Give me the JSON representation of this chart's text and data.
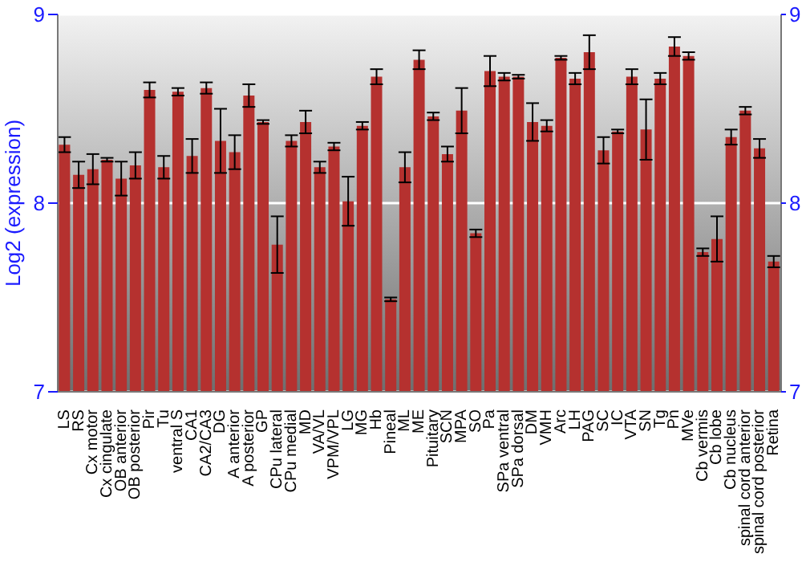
{
  "chart_data": {
    "type": "bar",
    "ylabel": "Log2 (expression)",
    "categories": [
      "LS",
      "RS",
      "Cx motor",
      "Cx cingulate",
      "OB anterior",
      "OB posterior",
      "Pir",
      "Tu",
      "ventral S",
      "CA1",
      "CA2/CA3",
      "DG",
      "A anterior",
      "A posterior",
      "GP",
      "CPu lateral",
      "CPu medial",
      "MD",
      "VA/VL",
      "VPM/VPL",
      "LG",
      "MG",
      "Hb",
      "Pineal",
      "ML",
      "ME",
      "Pituitary",
      "SCN",
      "MPA",
      "SO",
      "Pa",
      "SPa ventral",
      "SPa dorsal",
      "DM",
      "VMH",
      "Arc",
      "LH",
      "PAG",
      "SC",
      "IC",
      "VTA",
      "SN",
      "Tg",
      "Pn",
      "MVe",
      "Cb vermis",
      "Cb lobe",
      "Cb nucleus",
      "spinal cord anterior",
      "spinal cord posterior",
      "Retina"
    ],
    "series": [
      {
        "color": "#b5312f",
        "values": [
          8.31,
          8.15,
          8.18,
          8.23,
          8.13,
          8.2,
          8.6,
          8.19,
          8.59,
          8.25,
          8.61,
          8.33,
          8.27,
          8.57,
          8.43,
          7.78,
          8.33,
          8.43,
          8.19,
          8.3,
          8.01,
          8.41,
          8.67,
          7.49,
          8.19,
          8.76,
          8.46,
          8.26,
          8.49,
          7.84,
          8.7,
          8.67,
          8.67,
          8.43,
          8.41,
          8.77,
          8.66,
          8.8,
          8.28,
          8.38,
          8.67,
          8.39,
          8.66,
          8.83,
          8.78,
          7.74,
          7.81,
          8.35,
          8.49,
          8.29,
          7.69
        ],
        "errors": [
          0.04,
          0.07,
          0.08,
          0.01,
          0.09,
          0.07,
          0.04,
          0.06,
          0.02,
          0.09,
          0.03,
          0.17,
          0.09,
          0.06,
          0.01,
          0.15,
          0.03,
          0.06,
          0.03,
          0.02,
          0.13,
          0.02,
          0.04,
          0.01,
          0.08,
          0.05,
          0.02,
          0.04,
          0.12,
          0.02,
          0.08,
          0.02,
          0.01,
          0.1,
          0.03,
          0.01,
          0.03,
          0.09,
          0.07,
          0.01,
          0.04,
          0.16,
          0.03,
          0.05,
          0.02,
          0.02,
          0.12,
          0.04,
          0.02,
          0.05,
          0.03
        ]
      }
    ],
    "ylim": [
      7,
      9
    ],
    "yticks": [
      7,
      8,
      9
    ],
    "y2lim": [
      7,
      9
    ],
    "y2ticks": [
      7,
      8,
      9
    ],
    "grid": "y"
  }
}
